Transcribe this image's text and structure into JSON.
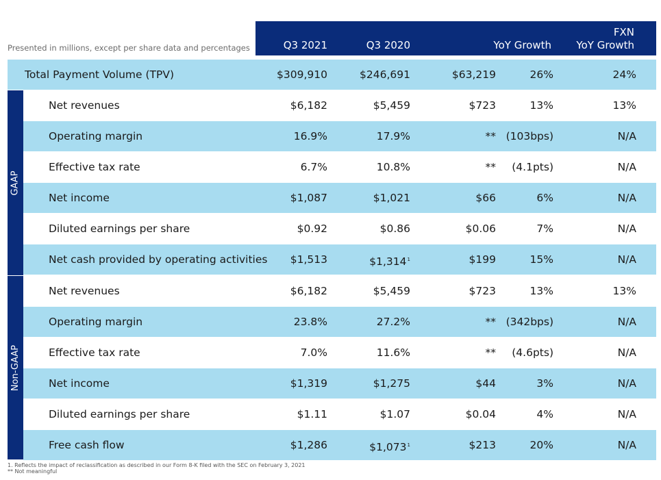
{
  "caption": "Presented in millions, except per share data and percentages",
  "headers": {
    "q3_2021": "Q3 2021",
    "q3_2020": "Q3 2020",
    "yoy_growth": "YoY Growth",
    "fxn_line1": "FXN",
    "fxn_line2": "YoY Growth"
  },
  "tpv": {
    "label": "Total Payment Volume (TPV)",
    "q3_2021": "$309,910",
    "q3_2020": "$246,691",
    "yoy_abs": "$63,219",
    "yoy_pct": "26%",
    "fxn": "24%"
  },
  "sections": {
    "gaap": "GAAP",
    "non_gaap": "Non-GAAP"
  },
  "gaap_rows": [
    {
      "label": "Net revenues",
      "q3_2021": "$6,182",
      "q3_2020": "$5,459",
      "fn": "",
      "yoy_abs": "$723",
      "yoy_pct": "13%",
      "fxn": "13%"
    },
    {
      "label": "Operating margin",
      "q3_2021": "16.9%",
      "q3_2020": "17.9%",
      "fn": "",
      "yoy_abs": "**",
      "yoy_pct": "(103bps)",
      "fxn": "N/A"
    },
    {
      "label": "Effective tax rate",
      "q3_2021": "6.7%",
      "q3_2020": "10.8%",
      "fn": "",
      "yoy_abs": "**",
      "yoy_pct": "(4.1pts)",
      "fxn": "N/A"
    },
    {
      "label": "Net income",
      "q3_2021": "$1,087",
      "q3_2020": "$1,021",
      "fn": "",
      "yoy_abs": "$66",
      "yoy_pct": "6%",
      "fxn": "N/A"
    },
    {
      "label": "Diluted earnings per share",
      "q3_2021": "$0.92",
      "q3_2020": "$0.86",
      "fn": "",
      "yoy_abs": "$0.06",
      "yoy_pct": "7%",
      "fxn": "N/A"
    },
    {
      "label": "Net cash provided by operating activities",
      "q3_2021": "$1,513",
      "q3_2020": "$1,314",
      "fn": "1",
      "yoy_abs": "$199",
      "yoy_pct": "15%",
      "fxn": "N/A"
    }
  ],
  "non_gaap_rows": [
    {
      "label": "Net revenues",
      "q3_2021": "$6,182",
      "q3_2020": "$5,459",
      "fn": "",
      "yoy_abs": "$723",
      "yoy_pct": "13%",
      "fxn": "13%"
    },
    {
      "label": "Operating margin",
      "q3_2021": "23.8%",
      "q3_2020": "27.2%",
      "fn": "",
      "yoy_abs": "**",
      "yoy_pct": "(342bps)",
      "fxn": "N/A"
    },
    {
      "label": "Effective tax rate",
      "q3_2021": "7.0%",
      "q3_2020": "11.6%",
      "fn": "",
      "yoy_abs": "**",
      "yoy_pct": "(4.6pts)",
      "fxn": "N/A"
    },
    {
      "label": "Net income",
      "q3_2021": "$1,319",
      "q3_2020": "$1,275",
      "fn": "",
      "yoy_abs": "$44",
      "yoy_pct": "3%",
      "fxn": "N/A"
    },
    {
      "label": "Diluted earnings per share",
      "q3_2021": "$1.11",
      "q3_2020": "$1.07",
      "fn": "",
      "yoy_abs": "$0.04",
      "yoy_pct": "4%",
      "fxn": "N/A"
    },
    {
      "label": "Free cash flow",
      "q3_2021": "$1,286",
      "q3_2020": "$1,073",
      "fn": "1",
      "yoy_abs": "$213",
      "yoy_pct": "20%",
      "fxn": "N/A"
    }
  ],
  "footnotes": {
    "note1": "1.  Reflects the impact of reclassification as described in our Form 8-K filed with the SEC on February 3, 2021",
    "note2": "**  Not meaningful"
  },
  "colors": {
    "navy": "#0a2c7a",
    "light_blue": "#a8dcf0"
  }
}
